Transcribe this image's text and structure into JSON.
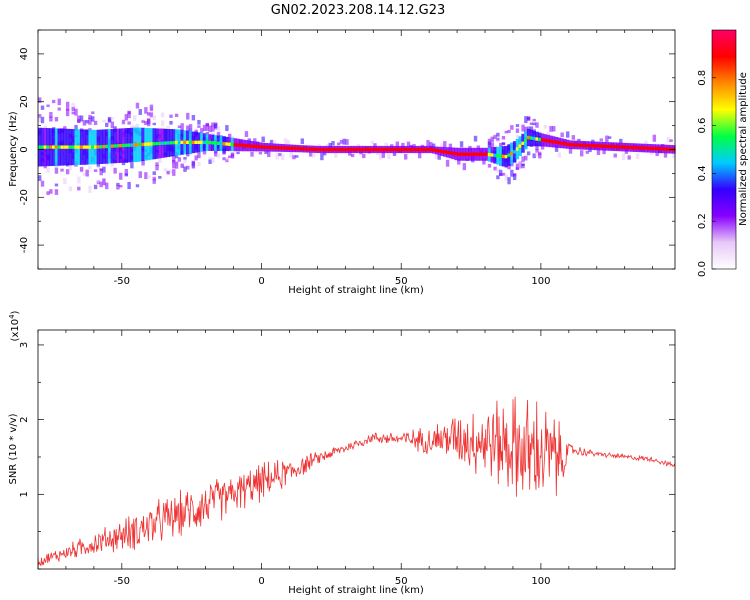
{
  "title": "GN02.2023.208.14.12.G23",
  "chart_data": [
    {
      "type": "heatmap",
      "xlabel": "Height of straight line (km)",
      "ylabel": "Frequency (Hz)",
      "xlim": [
        -80,
        148
      ],
      "ylim": [
        -50,
        50
      ],
      "xticks": [
        -50,
        0,
        50,
        100
      ],
      "yticks": [
        -40,
        -20,
        0,
        20,
        40
      ],
      "grid": false,
      "colorbar": {
        "label": "Normalized spectral amplitude",
        "range": [
          0,
          1
        ],
        "ticks": [
          "0.0",
          "0.2",
          "0.4",
          "0.6",
          "0.8"
        ],
        "colormap": "rainbow (white-violet-blue-cyan-green-yellow-orange-red-magenta)",
        "colors": [
          "#ffffff",
          "#e8c8f8",
          "#8800ff",
          "#3300ff",
          "#00ccff",
          "#00ff44",
          "#ffff00",
          "#ff8800",
          "#ff0000",
          "#ff0066"
        ]
      },
      "ridge": {
        "x": [
          -80,
          -60,
          -45,
          -30,
          -20,
          -10,
          0,
          20,
          40,
          60,
          70,
          80,
          87,
          90,
          95,
          100,
          110,
          148
        ],
        "y": [
          1,
          1,
          2,
          3,
          3,
          2,
          1,
          0,
          0,
          0,
          -2,
          -2,
          -3,
          -1,
          5,
          4,
          2,
          0
        ],
        "spread": [
          9,
          8,
          8,
          6,
          4,
          3,
          2,
          1.5,
          1.5,
          1.5,
          3,
          3,
          5,
          5,
          4,
          3,
          2,
          2
        ]
      }
    },
    {
      "type": "line",
      "xlabel": "Height of straight line (km)",
      "ylabel": "SNR (10 * v/v)",
      "y_multiplier": "(x10",
      "y_multiplier_exp": "4",
      "y_multiplier_close": ")",
      "xlim": [
        -80,
        148
      ],
      "ylim": [
        0.0,
        3.2
      ],
      "xticks": [
        -50,
        0,
        50,
        100
      ],
      "yticks": [
        1,
        2,
        3
      ],
      "color": "#ee3333",
      "grid": false,
      "series": [
        {
          "x": [
            -80,
            -70,
            -60,
            -50,
            -40,
            -30,
            -20,
            -10,
            0,
            10,
            20,
            30,
            40,
            50,
            60,
            70,
            80,
            90,
            95,
            100,
            105,
            108,
            110,
            120,
            130,
            140,
            148
          ],
          "y": [
            0.1,
            0.22,
            0.34,
            0.45,
            0.58,
            0.72,
            0.86,
            1.0,
            1.16,
            1.3,
            1.48,
            1.62,
            1.76,
            1.74,
            1.73,
            1.76,
            1.72,
            1.65,
            1.55,
            1.55,
            1.5,
            1.48,
            1.6,
            1.54,
            1.5,
            1.47,
            1.38
          ],
          "noise_amplitude": [
            0.08,
            0.12,
            0.18,
            0.25,
            0.35,
            0.35,
            0.38,
            0.3,
            0.3,
            0.22,
            0.1,
            0.08,
            0.08,
            0.12,
            0.22,
            0.4,
            0.6,
            0.8,
            0.9,
            0.85,
            0.7,
            0.4,
            0.1,
            0.04,
            0.04,
            0.04,
            0.04
          ]
        }
      ]
    }
  ]
}
